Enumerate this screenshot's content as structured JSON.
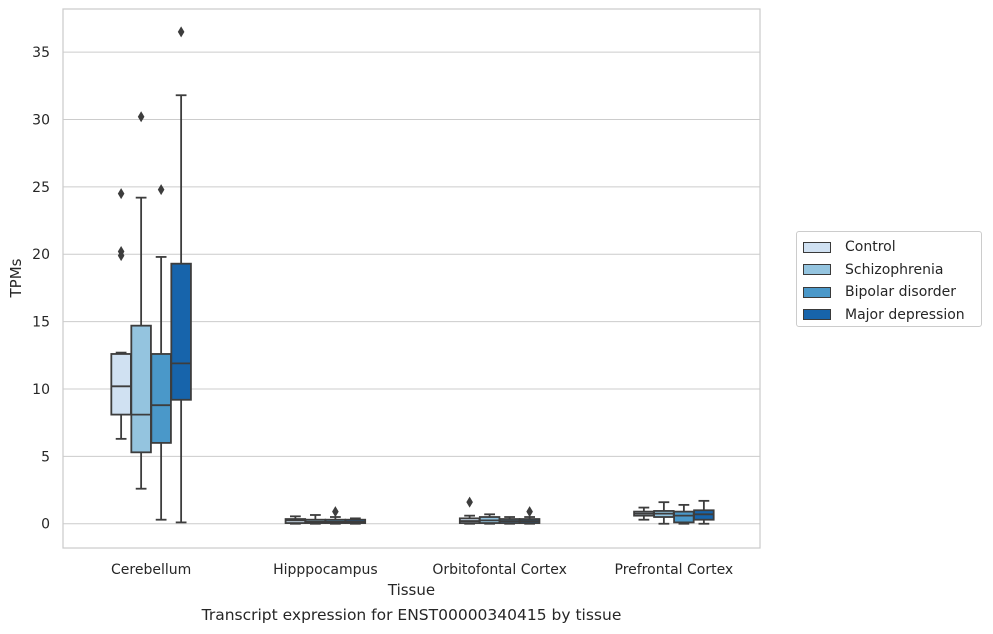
{
  "caption": "Transcript expression for ENST00000340415 by tissue",
  "chart_data": {
    "type": "box",
    "xlabel": "Tissue",
    "ylabel": "TPMs",
    "ylim": [
      -1.8,
      38.2
    ],
    "yticks": [
      0,
      5,
      10,
      15,
      20,
      25,
      30,
      35
    ],
    "grid": "horizontal",
    "legend_position": "outside-right",
    "categories": [
      "Cerebellum",
      "Hipppocampus",
      "Orbitofontal Cortex",
      "Prefrontal Cortex"
    ],
    "series": [
      {
        "name": "Control",
        "color": "#d0e1f2",
        "boxes": [
          {
            "min": 6.3,
            "q1": 8.1,
            "median": 10.2,
            "q3": 12.6,
            "max": 12.7,
            "outliers": [
              24.5,
              20.2,
              19.9
            ]
          },
          {
            "min": 0.0,
            "q1": 0.05,
            "median": 0.25,
            "q3": 0.35,
            "max": 0.55,
            "outliers": []
          },
          {
            "min": 0.0,
            "q1": 0.05,
            "median": 0.2,
            "q3": 0.4,
            "max": 0.6,
            "outliers": [
              1.6
            ]
          },
          {
            "min": 0.3,
            "q1": 0.6,
            "median": 0.75,
            "q3": 0.9,
            "max": 1.2,
            "outliers": []
          }
        ]
      },
      {
        "name": "Schizophrenia",
        "color": "#94c4df",
        "boxes": [
          {
            "min": 2.6,
            "q1": 5.3,
            "median": 8.1,
            "q3": 14.7,
            "max": 24.2,
            "outliers": [
              30.2
            ]
          },
          {
            "min": 0.0,
            "q1": 0.05,
            "median": 0.15,
            "q3": 0.3,
            "max": 0.65,
            "outliers": []
          },
          {
            "min": 0.0,
            "q1": 0.05,
            "median": 0.25,
            "q3": 0.5,
            "max": 0.7,
            "outliers": []
          },
          {
            "min": 0.0,
            "q1": 0.5,
            "median": 0.75,
            "q3": 0.95,
            "max": 1.6,
            "outliers": []
          }
        ]
      },
      {
        "name": "Bipolar disorder",
        "color": "#4a98c9",
        "boxes": [
          {
            "min": 0.3,
            "q1": 6.0,
            "median": 8.8,
            "q3": 12.6,
            "max": 19.8,
            "outliers": [
              24.8
            ]
          },
          {
            "min": 0.0,
            "q1": 0.05,
            "median": 0.15,
            "q3": 0.3,
            "max": 0.5,
            "outliers": [
              0.9
            ]
          },
          {
            "min": 0.0,
            "q1": 0.05,
            "median": 0.2,
            "q3": 0.35,
            "max": 0.5,
            "outliers": []
          },
          {
            "min": 0.0,
            "q1": 0.1,
            "median": 0.6,
            "q3": 0.9,
            "max": 1.4,
            "outliers": []
          }
        ]
      },
      {
        "name": "Major depression",
        "color": "#1764ab",
        "boxes": [
          {
            "min": 0.1,
            "q1": 9.2,
            "median": 11.9,
            "q3": 19.3,
            "max": 31.8,
            "outliers": [
              36.5
            ]
          },
          {
            "min": 0.0,
            "q1": 0.05,
            "median": 0.15,
            "q3": 0.3,
            "max": 0.4,
            "outliers": []
          },
          {
            "min": 0.0,
            "q1": 0.05,
            "median": 0.2,
            "q3": 0.35,
            "max": 0.5,
            "outliers": [
              0.9
            ]
          },
          {
            "min": 0.0,
            "q1": 0.3,
            "median": 0.7,
            "q3": 1.0,
            "max": 1.7,
            "outliers": []
          }
        ]
      }
    ]
  }
}
